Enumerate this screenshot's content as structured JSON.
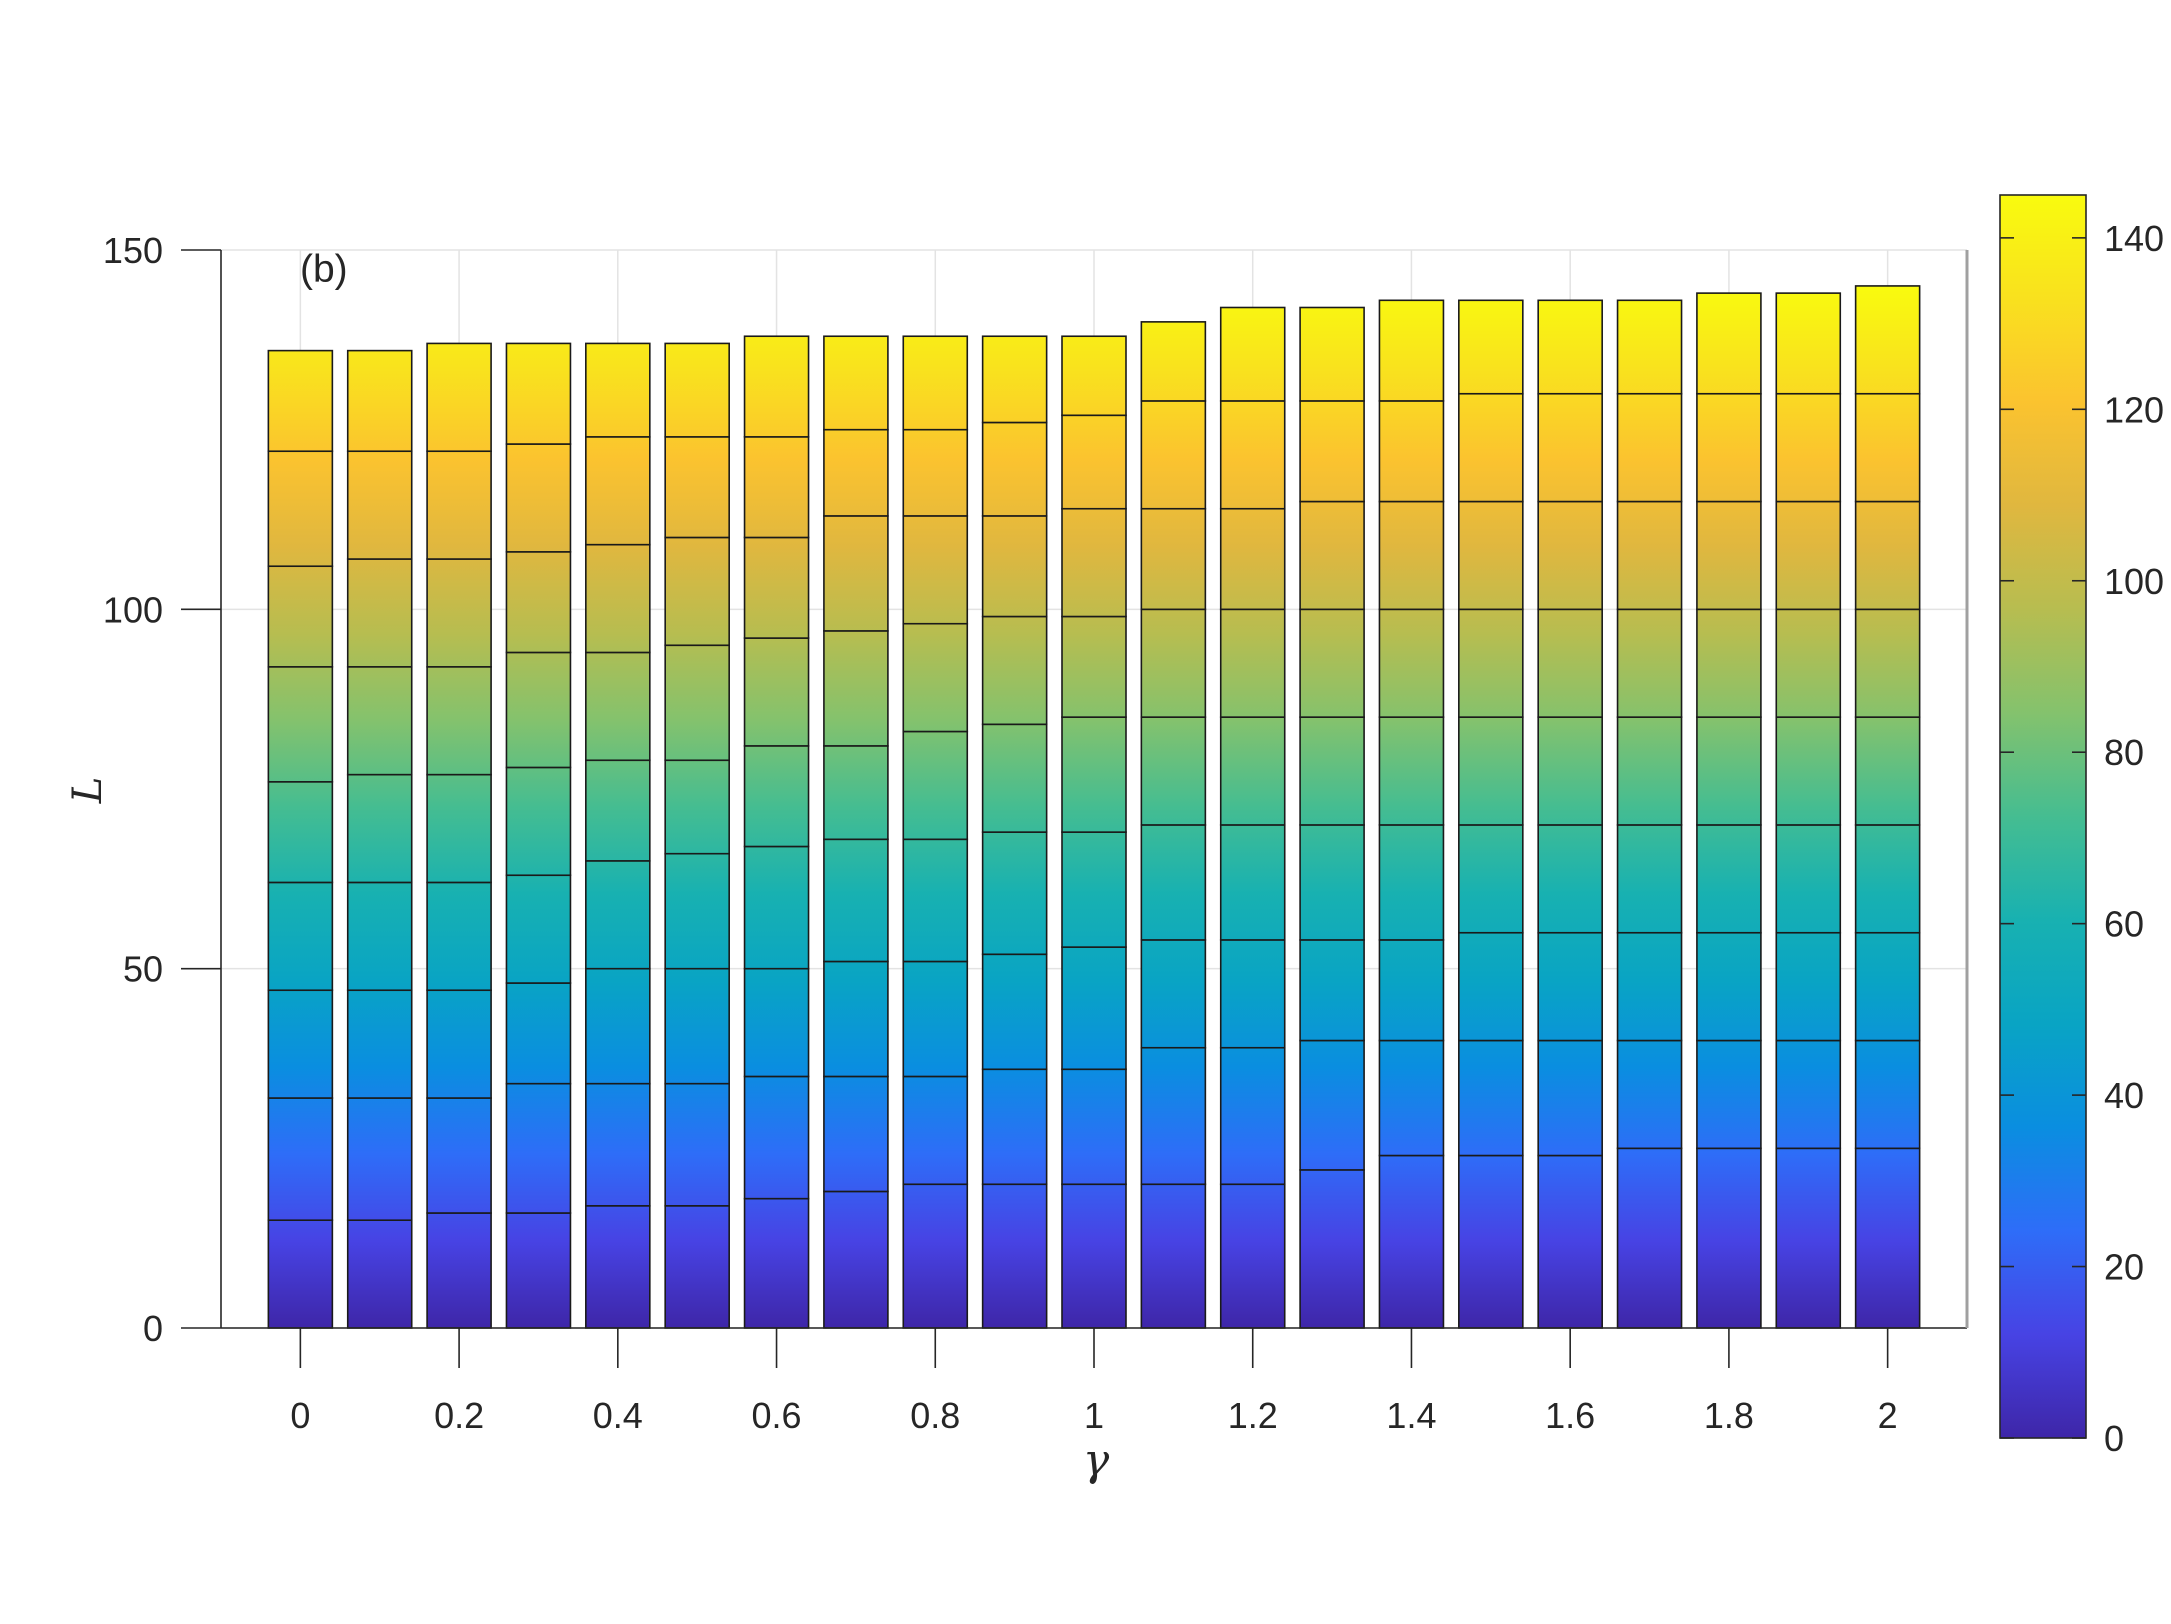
{
  "chart_data": {
    "type": "bar",
    "stacked": true,
    "panel_label": "(b)",
    "xlabel": "γ",
    "ylabel": "L",
    "ylim": [
      0,
      150
    ],
    "xlim": [
      -0.1,
      2.1
    ],
    "x": [
      0,
      0.1,
      0.2,
      0.3,
      0.4,
      0.5,
      0.6,
      0.7,
      0.8,
      0.9,
      1.0,
      1.1,
      1.2,
      1.3,
      1.4,
      1.5,
      1.6,
      1.7,
      1.8,
      1.9,
      2.0
    ],
    "x_tick_values": [
      0,
      0.2,
      0.4,
      0.6,
      0.8,
      1,
      1.2,
      1.4,
      1.6,
      1.8,
      2
    ],
    "x_tick_labels": [
      "0",
      "0.2",
      "0.4",
      "0.6",
      "0.8",
      "1",
      "1.2",
      "1.4",
      "1.6",
      "1.8",
      "2"
    ],
    "y_tick_values": [
      0,
      50,
      100,
      150
    ],
    "y_tick_labels": [
      "0",
      "50",
      "100",
      "150"
    ],
    "grid": true,
    "segment_boundaries": [
      [
        15,
        32,
        47,
        62,
        76,
        92,
        106,
        122,
        136
      ],
      [
        15,
        32,
        47,
        62,
        77,
        92,
        107,
        122,
        136
      ],
      [
        16,
        32,
        47,
        62,
        77,
        92,
        107,
        122,
        137
      ],
      [
        16,
        34,
        48,
        63,
        78,
        94,
        108,
        123,
        137
      ],
      [
        17,
        34,
        50,
        65,
        79,
        94,
        109,
        124,
        137
      ],
      [
        17,
        34,
        50,
        66,
        79,
        95,
        110,
        124,
        137
      ],
      [
        18,
        35,
        50,
        67,
        81,
        96,
        110,
        124,
        138
      ],
      [
        19,
        35,
        51,
        68,
        81,
        97,
        113,
        125,
        138
      ],
      [
        20,
        35,
        51,
        68,
        83,
        98,
        113,
        125,
        138
      ],
      [
        20,
        36,
        52,
        69,
        84,
        99,
        113,
        126,
        138
      ],
      [
        20,
        36,
        53,
        69,
        85,
        99,
        114,
        127,
        138
      ],
      [
        20,
        39,
        54,
        70,
        85,
        100,
        114,
        129,
        140
      ],
      [
        20,
        39,
        54,
        70,
        85,
        100,
        114,
        129,
        142
      ],
      [
        22,
        40,
        54,
        70,
        85,
        100,
        115,
        129,
        142
      ],
      [
        24,
        40,
        54,
        70,
        85,
        100,
        115,
        129,
        143
      ],
      [
        24,
        40,
        55,
        70,
        85,
        100,
        115,
        130,
        143
      ],
      [
        24,
        40,
        55,
        70,
        85,
        100,
        115,
        130,
        143
      ],
      [
        25,
        40,
        55,
        70,
        85,
        100,
        115,
        130,
        143
      ],
      [
        25,
        40,
        55,
        70,
        85,
        100,
        115,
        130,
        144
      ],
      [
        25,
        40,
        55,
        70,
        85,
        100,
        115,
        130,
        144
      ],
      [
        25,
        40,
        55,
        70,
        85,
        100,
        115,
        130,
        145
      ]
    ],
    "colorbar": {
      "range": [
        0,
        145
      ],
      "tick_values": [
        0,
        20,
        40,
        60,
        80,
        100,
        120,
        140
      ],
      "tick_labels": [
        "0",
        "20",
        "40",
        "60",
        "80",
        "100",
        "120",
        "140"
      ],
      "colormap": [
        "#3e26a8",
        "#4743e4",
        "#2e6df8",
        "#0a8ee0",
        "#09a4c4",
        "#18b1b1",
        "#45bd91",
        "#84c26d",
        "#b7bd50",
        "#e0b73f",
        "#fbc32f",
        "#f9e11e",
        "#f9fb0e"
      ]
    }
  }
}
